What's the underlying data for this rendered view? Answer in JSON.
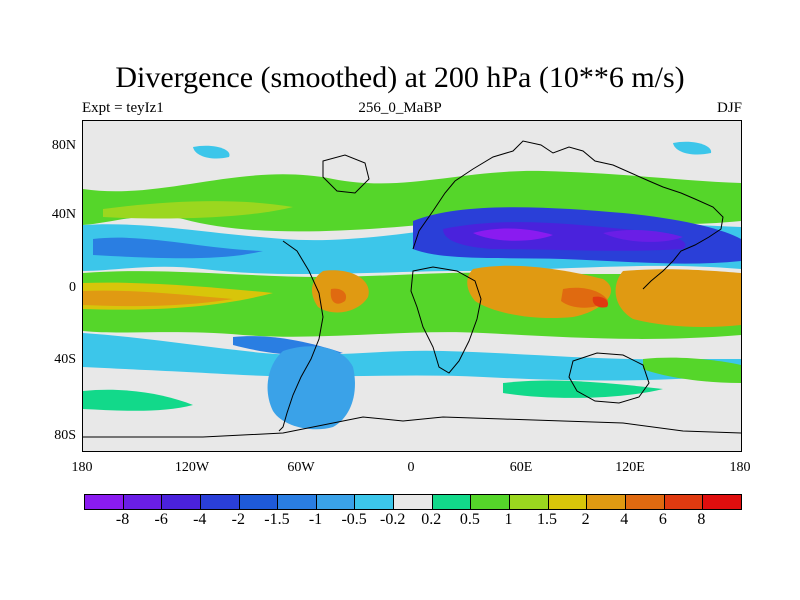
{
  "title": "Divergence (smoothed) at 200 hPa (10**6 m/s)",
  "subtitle_left": "Expt = teyIz1",
  "subtitle_center": "256_0_MaBP",
  "subtitle_right": "DJF",
  "lat_labels": [
    "80N",
    "40N",
    "0",
    "40S",
    "80S"
  ],
  "lon_labels": [
    "180",
    "120W",
    "60W",
    "0",
    "60E",
    "120E",
    "180"
  ],
  "colorbar": {
    "labels": [
      "-8",
      "-6",
      "-4",
      "-2",
      "-1.5",
      "-1",
      "-0.5",
      "-0.2",
      "0.2",
      "0.5",
      "1",
      "1.5",
      "2",
      "4",
      "6",
      "8"
    ],
    "colors": [
      "#8a1bf0",
      "#6a1ee6",
      "#4a22dc",
      "#2a3fd8",
      "#1e5ad8",
      "#2a7ee2",
      "#3aa2e8",
      "#3cc6ea",
      "#e8e8e8",
      "#12d98a",
      "#55d62a",
      "#9bd71f",
      "#d8c50a",
      "#e09a12",
      "#e06a10",
      "#e03a10",
      "#e00e0e"
    ]
  },
  "chart_data": {
    "type": "heatmap",
    "title": "Divergence (smoothed) at 200 hPa (10**6 m/s)",
    "subtitle": "256_0_MaBP",
    "season": "DJF",
    "experiment": "teyIz1",
    "x_axis": {
      "ticks": [
        "180",
        "120W",
        "60W",
        "0",
        "60E",
        "120E",
        "180"
      ],
      "range": [
        -180,
        180
      ]
    },
    "y_axis": {
      "ticks": [
        "80N",
        "40N",
        "0",
        "40S",
        "80S"
      ],
      "range": [
        -90,
        90
      ]
    },
    "levels": [
      -8,
      -6,
      -4,
      -2,
      -1.5,
      -1,
      -0.5,
      -0.2,
      0.2,
      0.5,
      1,
      1.5,
      2,
      4,
      6,
      8
    ]
  }
}
